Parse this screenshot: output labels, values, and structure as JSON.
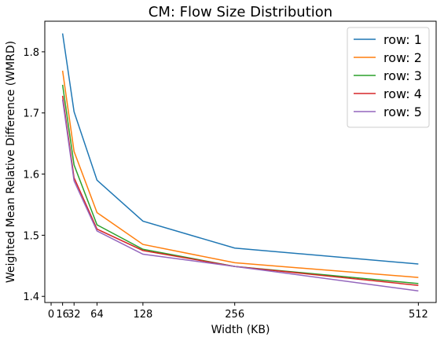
{
  "chart_data": {
    "type": "line",
    "title": "CM: Flow Size Distribution",
    "x_label": "Width (KB)",
    "y_label": "Weighted Mean Relative Difference (WMRD)",
    "x": [
      16,
      32,
      64,
      128,
      256,
      512
    ],
    "series": [
      {
        "name": "row: 1",
        "color": "#1f77b4",
        "values": [
          1.83,
          1.702,
          1.59,
          1.523,
          1.479,
          1.453
        ]
      },
      {
        "name": "row: 2",
        "color": "#ff7f0e",
        "values": [
          1.769,
          1.637,
          1.537,
          1.485,
          1.455,
          1.431
        ]
      },
      {
        "name": "row: 3",
        "color": "#2ca02c",
        "values": [
          1.746,
          1.615,
          1.517,
          1.477,
          1.449,
          1.421
        ]
      },
      {
        "name": "row: 4",
        "color": "#d62728",
        "values": [
          1.728,
          1.594,
          1.51,
          1.475,
          1.449,
          1.418
        ]
      },
      {
        "name": "row: 5",
        "color": "#9467bd",
        "values": [
          1.722,
          1.589,
          1.507,
          1.469,
          1.449,
          1.409
        ]
      }
    ],
    "xlim": [
      -8.8,
      536.8
    ],
    "xticks": [
      0,
      16,
      32,
      64,
      128,
      256,
      512
    ],
    "ylim": [
      1.39,
      1.85
    ],
    "yticks": [
      1.4,
      1.5,
      1.6,
      1.7,
      1.8
    ],
    "grid": false,
    "legend": "upper right"
  }
}
